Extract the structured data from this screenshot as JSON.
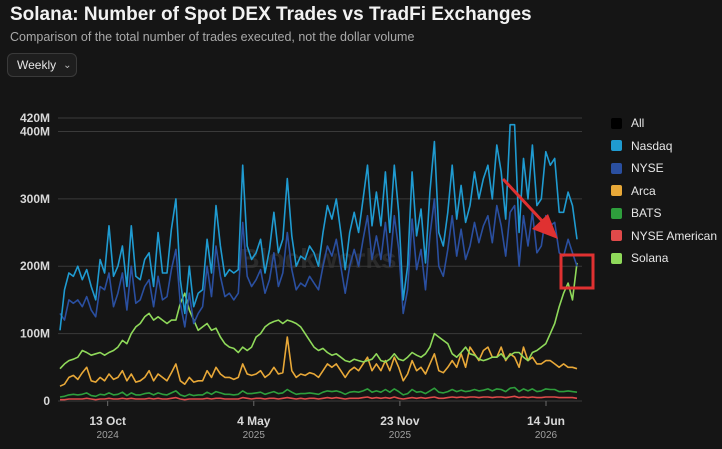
{
  "header": {
    "title": "Solana: Number of Spot DEX Trades vs TradFi Exchanges",
    "subtitle": "Comparison of the total number of trades executed, not the dollar volume"
  },
  "controls": {
    "frequency": "Weekly"
  },
  "watermark": "Blockworks",
  "colors": {
    "background": "#151515",
    "grid": "#3a3a3a",
    "highlight_box": "#e03131",
    "arrow": "#e03131"
  },
  "legend": [
    {
      "name": "All",
      "color": "#000000"
    },
    {
      "name": "Nasdaq",
      "color": "#1f9bd1"
    },
    {
      "name": "NYSE",
      "color": "#2a4fa0"
    },
    {
      "name": "Arca",
      "color": "#e8a838"
    },
    {
      "name": "BATS",
      "color": "#2e9e3c"
    },
    {
      "name": "NYSE American",
      "color": "#e04a4a"
    },
    {
      "name": "Solana",
      "color": "#8fd95a"
    }
  ],
  "chart_data": {
    "type": "line",
    "title": "Solana: Number of Spot DEX Trades vs TradFi Exchanges",
    "ylim": [
      0,
      420000000
    ],
    "y_ticks": [
      "0",
      "100M",
      "200M",
      "300M",
      "400M",
      "420M"
    ],
    "x_ticks": [
      {
        "label": "13 Oct",
        "year": "2024"
      },
      {
        "label": "4 May",
        "year": "2025"
      },
      {
        "label": "23 Nov",
        "year": "2025"
      },
      {
        "label": "14 Jun",
        "year": "2026"
      }
    ],
    "grid": true,
    "legend_position": "right",
    "x_range": [
      "2024-08-05",
      "2026-08-03"
    ],
    "x_tick_dates": [
      "2024-10-13",
      "2025-05-04",
      "2025-11-23",
      "2026-06-14"
    ],
    "annotations": [
      "red arrow pointing to latest Solana values",
      "red box around latest Solana values"
    ],
    "series": [
      {
        "name": "Nasdaq",
        "color": "#1f9bd1",
        "values": [
          105,
          165,
          190,
          185,
          200,
          180,
          195,
          170,
          150,
          210,
          190,
          260,
          185,
          200,
          230,
          170,
          260,
          185,
          180,
          210,
          220,
          170,
          250,
          190,
          190,
          255,
          300,
          180,
          130,
          200,
          140,
          160,
          165,
          240,
          190,
          290,
          230,
          185,
          195,
          190,
          195,
          350,
          230,
          210,
          220,
          240,
          190,
          225,
          280,
          220,
          240,
          330,
          245,
          200,
          215,
          210,
          230,
          220,
          200,
          250,
          290,
          270,
          300,
          250,
          195,
          250,
          280,
          250,
          300,
          350,
          260,
          310,
          260,
          340,
          250,
          350,
          280,
          150,
          200,
          340,
          245,
          285,
          205,
          310,
          385,
          250,
          230,
          280,
          350,
          270,
          320,
          265,
          290,
          340,
          300,
          330,
          350,
          300,
          380,
          340,
          270,
          410,
          410,
          250,
          360,
          300,
          380,
          290,
          300,
          370,
          350,
          360,
          280,
          280,
          310,
          290,
          240
        ]
      },
      {
        "name": "NYSE",
        "color": "#2a4fa0",
        "values": [
          130,
          120,
          150,
          145,
          150,
          140,
          155,
          135,
          125,
          170,
          165,
          190,
          140,
          160,
          190,
          135,
          200,
          145,
          150,
          170,
          180,
          140,
          185,
          150,
          155,
          195,
          225,
          145,
          110,
          160,
          115,
          130,
          140,
          200,
          155,
          230,
          185,
          155,
          160,
          150,
          160,
          265,
          185,
          170,
          180,
          195,
          160,
          180,
          220,
          170,
          190,
          250,
          195,
          165,
          175,
          170,
          185,
          175,
          165,
          200,
          230,
          215,
          240,
          200,
          160,
          200,
          225,
          200,
          240,
          275,
          210,
          245,
          210,
          265,
          200,
          275,
          225,
          130,
          165,
          270,
          195,
          225,
          165,
          245,
          300,
          200,
          185,
          225,
          275,
          215,
          255,
          210,
          230,
          265,
          235,
          260,
          275,
          235,
          290,
          260,
          215,
          280,
          290,
          200,
          275,
          230,
          280,
          220,
          230,
          275,
          260,
          265,
          220,
          215,
          240,
          220,
          200
        ]
      },
      {
        "name": "Arca",
        "color": "#e8a838",
        "values": [
          22,
          25,
          35,
          38,
          32,
          42,
          50,
          30,
          28,
          35,
          30,
          40,
          32,
          35,
          45,
          30,
          40,
          28,
          30,
          35,
          45,
          30,
          40,
          35,
          30,
          42,
          55,
          30,
          25,
          35,
          28,
          30,
          30,
          45,
          35,
          50,
          40,
          35,
          35,
          32,
          35,
          55,
          40,
          38,
          40,
          45,
          35,
          40,
          50,
          40,
          42,
          95,
          45,
          35,
          40,
          38,
          42,
          40,
          35,
          45,
          55,
          50,
          55,
          45,
          35,
          45,
          50,
          45,
          55,
          65,
          45,
          55,
          45,
          60,
          45,
          65,
          50,
          30,
          40,
          60,
          45,
          50,
          40,
          55,
          70,
          45,
          42,
          50,
          60,
          50,
          70,
          50,
          80,
          70,
          60,
          75,
          80,
          65,
          65,
          80,
          60,
          70,
          65,
          50,
          80,
          60,
          65,
          55,
          55,
          60,
          60,
          55,
          50,
          55,
          50,
          50,
          48
        ]
      },
      {
        "name": "BATS",
        "color": "#2e9e3c",
        "values": [
          6,
          7,
          9,
          10,
          9,
          10,
          12,
          8,
          7,
          10,
          9,
          12,
          9,
          10,
          13,
          8,
          12,
          9,
          9,
          11,
          12,
          9,
          12,
          10,
          9,
          12,
          15,
          9,
          7,
          10,
          8,
          9,
          9,
          13,
          10,
          14,
          12,
          10,
          10,
          9,
          10,
          15,
          11,
          11,
          12,
          13,
          10,
          12,
          14,
          11,
          12,
          17,
          13,
          10,
          11,
          11,
          12,
          11,
          10,
          13,
          15,
          14,
          15,
          13,
          10,
          13,
          14,
          13,
          15,
          18,
          13,
          15,
          13,
          17,
          13,
          18,
          14,
          9,
          11,
          17,
          13,
          14,
          11,
          15,
          19,
          13,
          12,
          14,
          17,
          14,
          16,
          14,
          15,
          17,
          15,
          16,
          18,
          15,
          18,
          17,
          14,
          19,
          20,
          14,
          18,
          15,
          18,
          14,
          15,
          18,
          17,
          17,
          14,
          14,
          15,
          14,
          13
        ]
      },
      {
        "name": "NYSE American",
        "color": "#e04a4a",
        "values": [
          2,
          2,
          3,
          3,
          3,
          3,
          4,
          3,
          2,
          3,
          3,
          4,
          3,
          3,
          4,
          3,
          4,
          3,
          3,
          3,
          4,
          3,
          4,
          3,
          3,
          4,
          5,
          3,
          2,
          3,
          3,
          3,
          3,
          4,
          3,
          4,
          4,
          3,
          3,
          3,
          3,
          5,
          4,
          3,
          4,
          4,
          3,
          4,
          4,
          3,
          4,
          5,
          4,
          3,
          4,
          3,
          4,
          4,
          3,
          4,
          5,
          4,
          5,
          4,
          3,
          4,
          4,
          4,
          5,
          6,
          4,
          5,
          4,
          5,
          4,
          6,
          4,
          3,
          4,
          5,
          4,
          5,
          4,
          5,
          6,
          4,
          4,
          5,
          6,
          5,
          6,
          5,
          6,
          6,
          5,
          6,
          6,
          5,
          6,
          6,
          5,
          6,
          7,
          5,
          6,
          5,
          6,
          5,
          5,
          6,
          6,
          6,
          5,
          5,
          5,
          5,
          4
        ]
      },
      {
        "name": "Solana",
        "color": "#8fd95a",
        "values": [
          48,
          55,
          60,
          62,
          65,
          75,
          72,
          68,
          70,
          72,
          68,
          72,
          75,
          80,
          90,
          85,
          100,
          110,
          115,
          125,
          130,
          120,
          125,
          120,
          115,
          120,
          120,
          145,
          160,
          135,
          120,
          105,
          110,
          115,
          105,
          108,
          95,
          85,
          80,
          78,
          72,
          80,
          75,
          80,
          95,
          100,
          110,
          115,
          118,
          120,
          115,
          120,
          118,
          115,
          110,
          100,
          90,
          80,
          75,
          78,
          72,
          68,
          70,
          65,
          60,
          58,
          62,
          60,
          58,
          60,
          62,
          70,
          60,
          58,
          62,
          70,
          62,
          60,
          65,
          72,
          68,
          65,
          70,
          80,
          100,
          95,
          90,
          85,
          70,
          65,
          72,
          80,
          70,
          68,
          62,
          60,
          62,
          65,
          65,
          70,
          62,
          68,
          72,
          72,
          65,
          60,
          72,
          75,
          80,
          85,
          100,
          115,
          140,
          160,
          175,
          150,
          205
        ]
      }
    ]
  }
}
